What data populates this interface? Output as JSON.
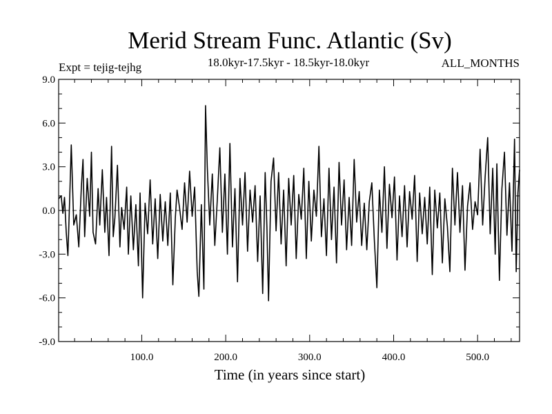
{
  "chart_data": {
    "type": "line",
    "title": "Merid Stream Func. Atlantic (Sv)",
    "subtitle": "18.0kyr-17.5kyr - 18.5kyr-18.0kyr",
    "left_label": "Expt = tejig-tejhg",
    "right_label": "ALL_MONTHS",
    "xlabel": "Time (in years since start)",
    "ylabel": "",
    "xlim": [
      1,
      550
    ],
    "ylim": [
      -9.0,
      9.0
    ],
    "x_ticks": [
      {
        "value": 100,
        "label": "100.0"
      },
      {
        "value": 200,
        "label": "200.0"
      },
      {
        "value": 300,
        "label": "300.0"
      },
      {
        "value": 400,
        "label": "400.0"
      },
      {
        "value": 500,
        "label": "500.0"
      }
    ],
    "y_ticks": [
      {
        "value": 9,
        "label": "9.0"
      },
      {
        "value": 6,
        "label": "6.0"
      },
      {
        "value": 3,
        "label": "3.0"
      },
      {
        "value": 0,
        "label": "0.0"
      },
      {
        "value": -3,
        "label": "-3.0"
      },
      {
        "value": -6,
        "label": "-6.0"
      },
      {
        "value": -9,
        "label": "-9.0"
      }
    ],
    "zero_line": {
      "value": 0.0,
      "style": "dashed"
    },
    "series": [
      {
        "color": "#000000",
        "points": [
          [
            1,
            0.8
          ],
          [
            4,
            1.0
          ],
          [
            6,
            -0.2
          ],
          [
            8,
            0.9
          ],
          [
            10,
            -1.5
          ],
          [
            12,
            -3.1
          ],
          [
            14,
            0.5
          ],
          [
            16,
            4.5
          ],
          [
            19,
            -1.0
          ],
          [
            22,
            -0.3
          ],
          [
            25,
            -2.5
          ],
          [
            28,
            1.6
          ],
          [
            30,
            3.5
          ],
          [
            32,
            -1.8
          ],
          [
            35,
            2.2
          ],
          [
            38,
            -0.4
          ],
          [
            40,
            4.0
          ],
          [
            42,
            -1.5
          ],
          [
            45,
            -2.3
          ],
          [
            48,
            1.5
          ],
          [
            50,
            -1.0
          ],
          [
            53,
            2.8
          ],
          [
            56,
            -1.5
          ],
          [
            58,
            0.9
          ],
          [
            61,
            -3.1
          ],
          [
            64,
            4.4
          ],
          [
            66,
            -1.8
          ],
          [
            68,
            -0.5
          ],
          [
            71,
            3.1
          ],
          [
            74,
            -2.5
          ],
          [
            76,
            0.2
          ],
          [
            79,
            -1.3
          ],
          [
            82,
            1.6
          ],
          [
            84,
            -3.0
          ],
          [
            87,
            1.0
          ],
          [
            90,
            -2.7
          ],
          [
            93,
            0.4
          ],
          [
            96,
            -3.8
          ],
          [
            98,
            1.2
          ],
          [
            101,
            -6.0
          ],
          [
            104,
            0.5
          ],
          [
            107,
            -1.6
          ],
          [
            110,
            2.1
          ],
          [
            113,
            -2.3
          ],
          [
            116,
            0.8
          ],
          [
            119,
            -3.3
          ],
          [
            122,
            1.1
          ],
          [
            125,
            -2.1
          ],
          [
            128,
            0.6
          ],
          [
            131,
            -2.4
          ],
          [
            134,
            1.2
          ],
          [
            137,
            -5.1
          ],
          [
            140,
            -0.5
          ],
          [
            142,
            1.4
          ],
          [
            145,
            0.2
          ],
          [
            148,
            -1.3
          ],
          [
            151,
            1.9
          ],
          [
            154,
            -0.8
          ],
          [
            157,
            2.7
          ],
          [
            160,
            -0.4
          ],
          [
            163,
            1.6
          ],
          [
            166,
            -4.2
          ],
          [
            168,
            -5.9
          ],
          [
            171,
            0.4
          ],
          [
            174,
            -5.4
          ],
          [
            176,
            7.2
          ],
          [
            178,
            3.0
          ],
          [
            181,
            -1.0
          ],
          [
            184,
            2.5
          ],
          [
            187,
            -2.4
          ],
          [
            190,
            0.8
          ],
          [
            193,
            4.3
          ],
          [
            196,
            -1.5
          ],
          [
            199,
            2.5
          ],
          [
            202,
            -3.0
          ],
          [
            205,
            4.6
          ],
          [
            208,
            -2.5
          ],
          [
            211,
            1.5
          ],
          [
            214,
            -4.9
          ],
          [
            217,
            2.2
          ],
          [
            220,
            -1.0
          ],
          [
            223,
            2.6
          ],
          [
            226,
            -2.8
          ],
          [
            229,
            1.4
          ],
          [
            232,
            -0.8
          ],
          [
            235,
            1.7
          ],
          [
            238,
            -3.5
          ],
          [
            241,
            1.0
          ],
          [
            244,
            -5.7
          ],
          [
            247,
            2.6
          ],
          [
            249,
            -1.1
          ],
          [
            251,
            -6.2
          ],
          [
            254,
            2.0
          ],
          [
            257,
            3.6
          ],
          [
            260,
            -1.4
          ],
          [
            263,
            2.6
          ],
          [
            266,
            -2.3
          ],
          [
            269,
            1.4
          ],
          [
            272,
            -3.8
          ],
          [
            275,
            2.2
          ],
          [
            278,
            -1.0
          ],
          [
            281,
            2.4
          ],
          [
            284,
            -3.3
          ],
          [
            287,
            1.1
          ],
          [
            290,
            -0.6
          ],
          [
            293,
            2.9
          ],
          [
            296,
            -3.3
          ],
          [
            299,
            2.0
          ],
          [
            302,
            -2.1
          ],
          [
            305,
            1.4
          ],
          [
            308,
            -0.4
          ],
          [
            311,
            4.4
          ],
          [
            314,
            -1.8
          ],
          [
            317,
            0.8
          ],
          [
            320,
            -3.1
          ],
          [
            323,
            2.9
          ],
          [
            326,
            -2.0
          ],
          [
            329,
            1.6
          ],
          [
            332,
            -3.6
          ],
          [
            335,
            3.3
          ],
          [
            338,
            -1.0
          ],
          [
            341,
            2.1
          ],
          [
            344,
            -2.7
          ],
          [
            347,
            0.9
          ],
          [
            350,
            -2.4
          ],
          [
            353,
            3.5
          ],
          [
            356,
            -0.8
          ],
          [
            359,
            1.3
          ],
          [
            362,
            -2.4
          ],
          [
            365,
            0.5
          ],
          [
            368,
            -2.7
          ],
          [
            371,
            0.6
          ],
          [
            374,
            1.9
          ],
          [
            377,
            -2.0
          ],
          [
            380,
            -5.3
          ],
          [
            383,
            1.4
          ],
          [
            386,
            -1.5
          ],
          [
            389,
            3.0
          ],
          [
            392,
            -2.6
          ],
          [
            395,
            1.8
          ],
          [
            398,
            -0.5
          ],
          [
            401,
            2.3
          ],
          [
            404,
            -3.4
          ],
          [
            407,
            1.0
          ],
          [
            410,
            -1.8
          ],
          [
            413,
            1.7
          ],
          [
            416,
            -2.5
          ],
          [
            419,
            1.3
          ],
          [
            422,
            -0.6
          ],
          [
            425,
            2.4
          ],
          [
            428,
            -3.5
          ],
          [
            431,
            1.2
          ],
          [
            434,
            -1.6
          ],
          [
            437,
            0.9
          ],
          [
            440,
            -2.3
          ],
          [
            443,
            1.6
          ],
          [
            446,
            -4.4
          ],
          [
            449,
            1.4
          ],
          [
            452,
            -1.2
          ],
          [
            455,
            1.2
          ],
          [
            458,
            -3.6
          ],
          [
            461,
            0.8
          ],
          [
            464,
            -1.1
          ],
          [
            467,
            -4.2
          ],
          [
            470,
            2.9
          ],
          [
            473,
            -1.0
          ],
          [
            476,
            2.6
          ],
          [
            479,
            -1.5
          ],
          [
            482,
            1.7
          ],
          [
            485,
            -4.1
          ],
          [
            488,
            0.3
          ],
          [
            491,
            1.9
          ],
          [
            494,
            -1.3
          ],
          [
            497,
            0.6
          ],
          [
            500,
            -0.3
          ],
          [
            503,
            4.2
          ],
          [
            506,
            -1.0
          ],
          [
            509,
            2.3
          ],
          [
            512,
            5.0
          ],
          [
            515,
            -1.6
          ],
          [
            518,
            2.9
          ],
          [
            521,
            -3.0
          ],
          [
            523,
            3.2
          ],
          [
            526,
            -4.8
          ],
          [
            529,
            1.5
          ],
          [
            532,
            4.0
          ],
          [
            535,
            -1.7
          ],
          [
            538,
            1.9
          ],
          [
            541,
            -2.8
          ],
          [
            544,
            4.9
          ],
          [
            546,
            -4.2
          ],
          [
            548,
            1.2
          ],
          [
            550,
            2.8
          ]
        ]
      }
    ]
  }
}
